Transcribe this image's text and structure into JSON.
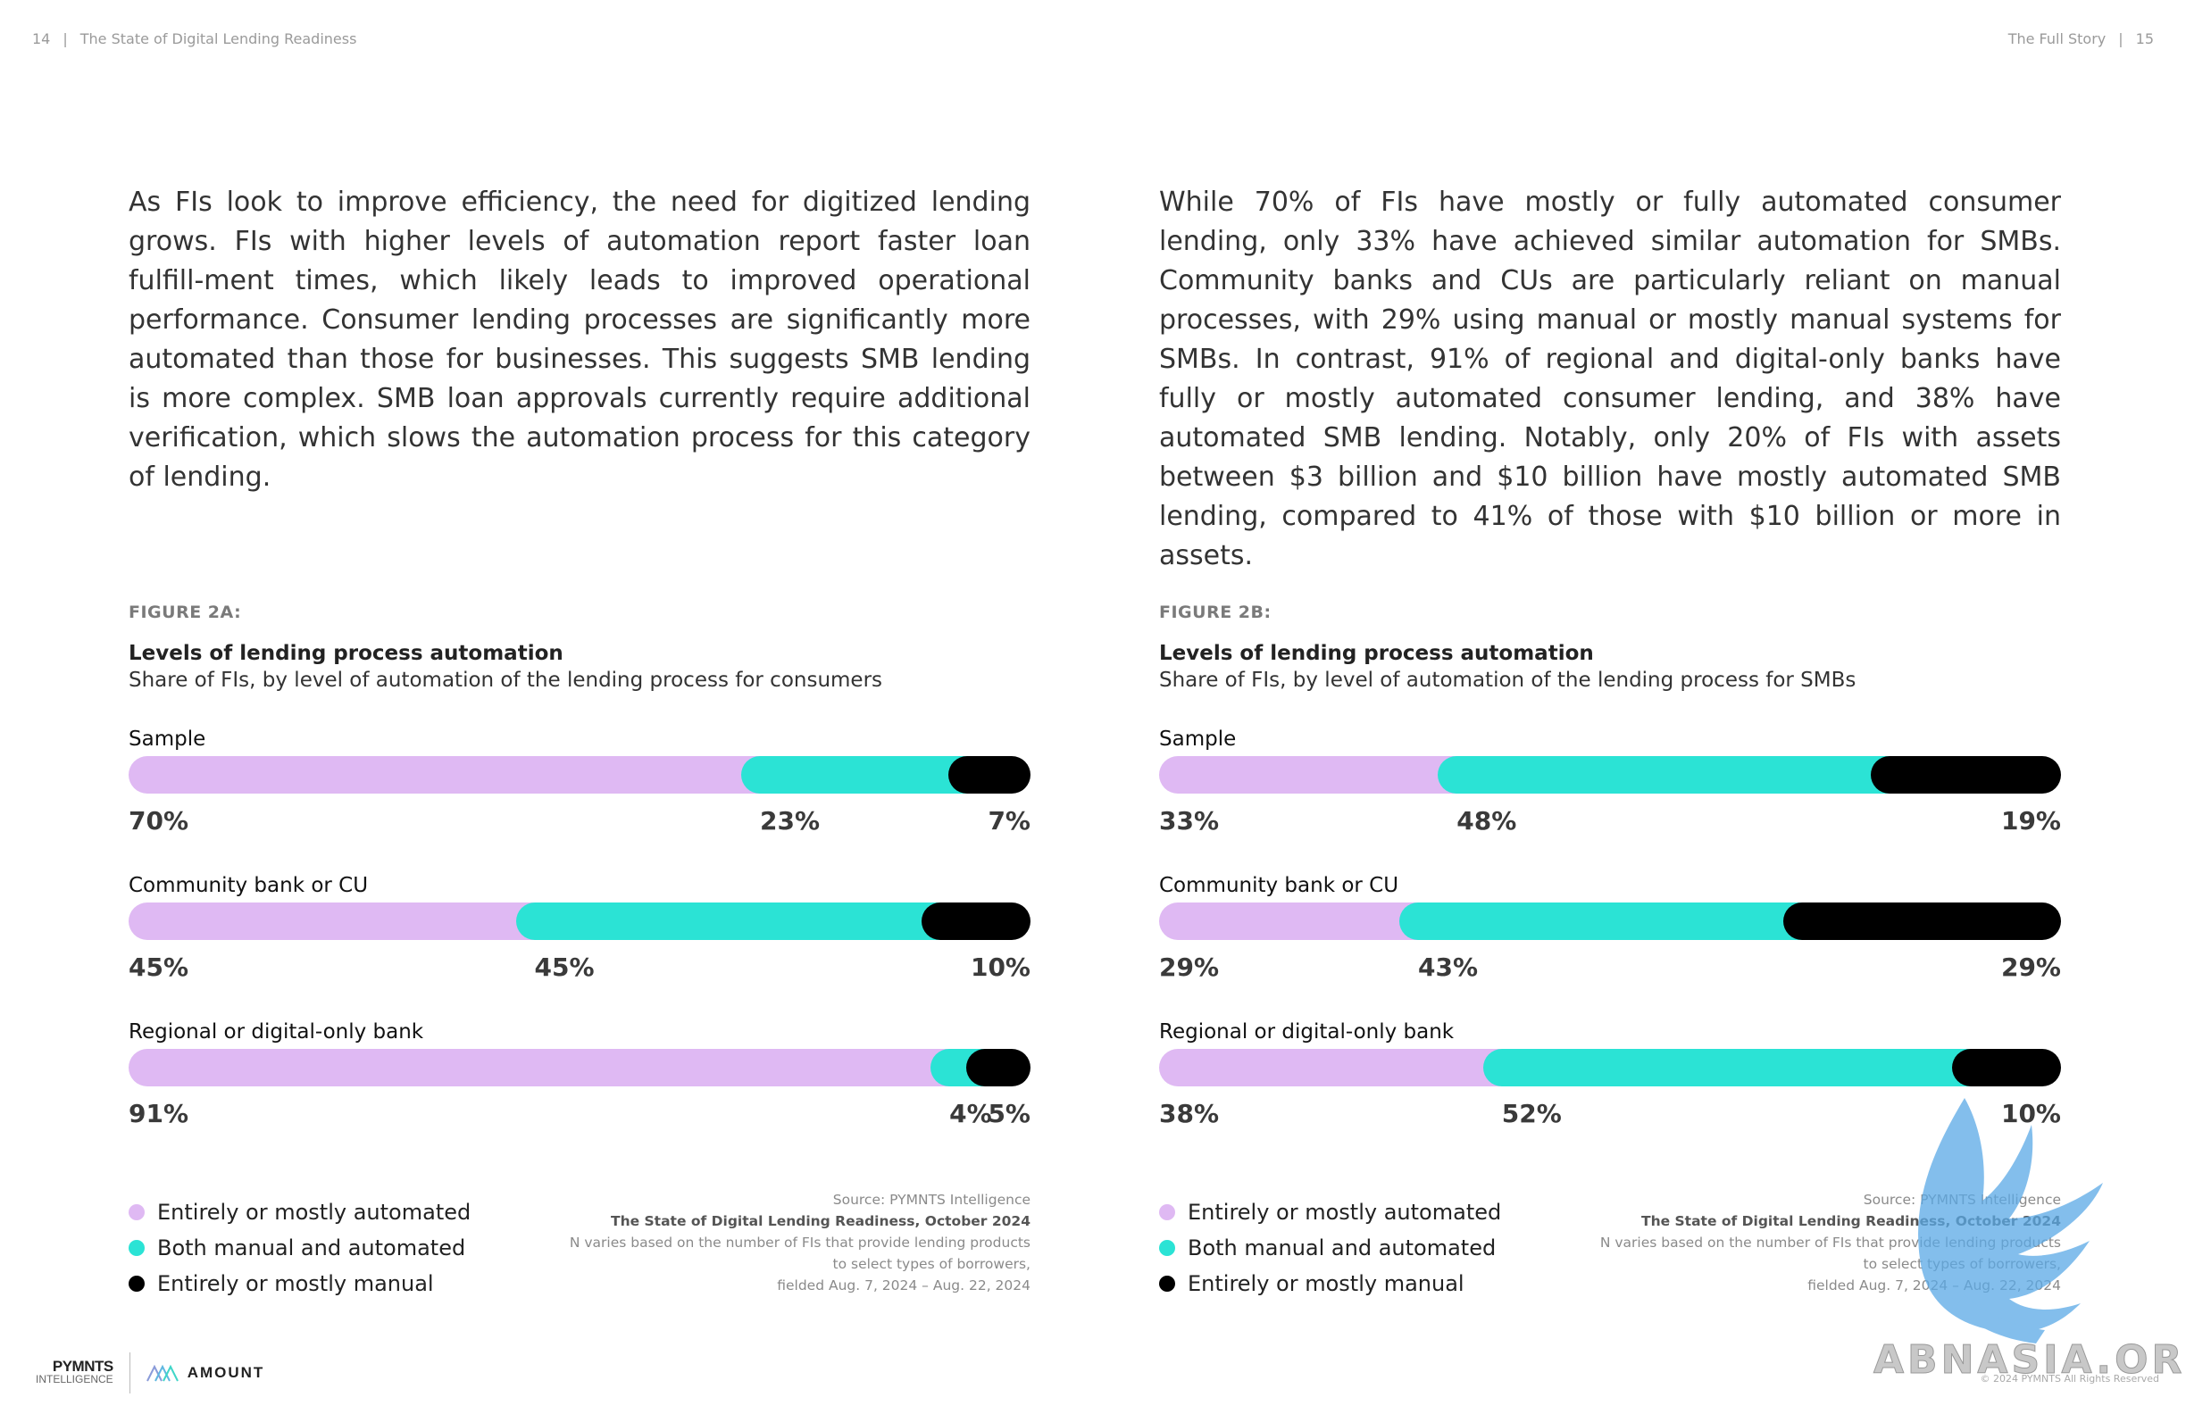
{
  "header": {
    "left_page": "14",
    "left_title": "The State of Digital Lending Readiness",
    "right_title": "The Full Story",
    "right_page": "15",
    "separator": "|"
  },
  "left": {
    "paragraph": "As FIs look to improve efficiency, the need for digitized lending grows. FIs with higher levels of automation report faster loan fulfill-ment times, which likely leads to improved operational performance. Consumer lending processes are significantly more automated than those for businesses. This suggests SMB lending is more complex. SMB loan approvals currently require additional verification, which slows the automation process for this category of lending.",
    "figure_label": "FIGURE 2A:",
    "figure_title": "Levels of lending process automation",
    "figure_subtitle": "Share of FIs, by level of automation of the lending process for consumers"
  },
  "right": {
    "paragraph": "While 70% of FIs have mostly or fully automated consumer lending, only 33% have achieved similar automation for SMBs. Community banks and CUs are particularly reliant on manual processes, with 29% using manual or mostly manual systems for SMBs. In contrast, 91% of regional and digital-only banks have fully or mostly automated consumer lending, and 38% have automated SMB lending. Notably, only 20% of FIs with assets between $3 billion and $10 billion have mostly automated SMB lending, compared to 41% of those with $10 billion or more in assets.",
    "figure_label": "FIGURE 2B:",
    "figure_title": "Levels of lending process automation",
    "figure_subtitle": "Share of FIs, by level of automation of the lending process for SMBs"
  },
  "legend": [
    {
      "label": "Entirely or mostly automated",
      "color": "#dfb9f3"
    },
    {
      "label": "Both manual and automated",
      "color": "#2be3d5"
    },
    {
      "label": "Entirely or mostly manual",
      "color": "#000000"
    }
  ],
  "source": {
    "line1": "Source: PYMNTS Intelligence",
    "line2": "The State of Digital Lending Readiness, October 2024",
    "line3": "N varies based on the number of FIs that provide lending products",
    "line4": "to select types of borrowers,",
    "line5": "fielded Aug. 7, 2024 – Aug. 22, 2024"
  },
  "footer": {
    "brand1_line1": "PYMNTS",
    "brand1_line2": "INTELLIGENCE",
    "brand2": "AMOUNT",
    "copyright": "© 2024 PYMNTS All Rights Reserved",
    "watermark": "ABNASIA.ORG"
  },
  "chart_data": [
    {
      "type": "bar",
      "stacked": true,
      "orientation": "horizontal",
      "title": "Levels of lending process automation",
      "subtitle": "Share of FIs, by level of automation of the lending process for consumers",
      "categories": [
        "Sample",
        "Community bank or CU",
        "Regional or digital-only bank"
      ],
      "series": [
        {
          "name": "Entirely or mostly automated",
          "color": "#dfb9f3",
          "values": [
            70,
            45,
            91
          ],
          "labels": [
            "70%",
            "45%",
            "91%"
          ]
        },
        {
          "name": "Both manual and automated",
          "color": "#2be3d5",
          "values": [
            23,
            45,
            4
          ],
          "labels": [
            "23%",
            "45%",
            "4%"
          ]
        },
        {
          "name": "Entirely or mostly manual",
          "color": "#000000",
          "values": [
            7,
            10,
            5
          ],
          "labels": [
            "7%",
            "10%",
            "5%"
          ]
        }
      ]
    },
    {
      "type": "bar",
      "stacked": true,
      "orientation": "horizontal",
      "title": "Levels of lending process automation",
      "subtitle": "Share of FIs, by level of automation of the lending process for SMBs",
      "categories": [
        "Sample",
        "Community bank or CU",
        "Regional or digital-only bank"
      ],
      "series": [
        {
          "name": "Entirely or mostly automated",
          "color": "#dfb9f3",
          "values": [
            33,
            29,
            38
          ],
          "labels": [
            "33%",
            "29%",
            "38%"
          ]
        },
        {
          "name": "Both manual and automated",
          "color": "#2be3d5",
          "values": [
            48,
            43,
            52
          ],
          "labels": [
            "48%",
            "43%",
            "52%"
          ]
        },
        {
          "name": "Entirely or mostly manual",
          "color": "#000000",
          "values": [
            19,
            29,
            10
          ],
          "labels": [
            "19%",
            "29%",
            "10%"
          ]
        }
      ]
    }
  ]
}
